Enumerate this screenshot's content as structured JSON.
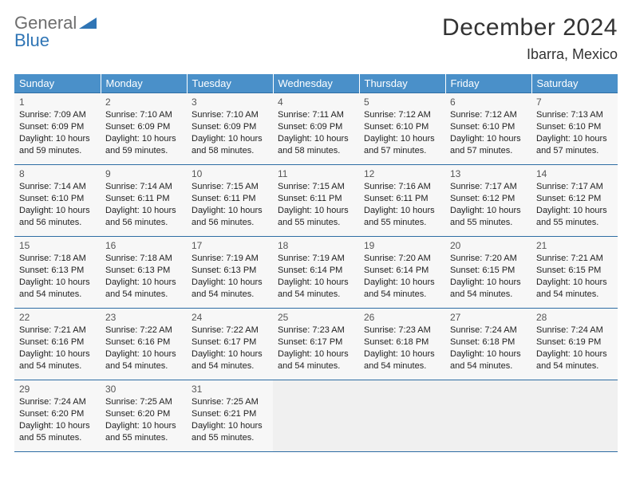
{
  "brand": {
    "part1": "General",
    "part2": "Blue"
  },
  "title": "December 2024",
  "location": "Ibarra, Mexico",
  "weekdays": [
    "Sunday",
    "Monday",
    "Tuesday",
    "Wednesday",
    "Thursday",
    "Friday",
    "Saturday"
  ],
  "colors": {
    "header_bg": "#4a90c9",
    "header_text": "#ffffff",
    "border": "#2e6da4",
    "cell_bg": "#f7f7f7",
    "empty_bg": "#f0f0f0",
    "logo_gray": "#6e6e6e",
    "logo_blue": "#2f75b5",
    "triangle": "#2f75b5"
  },
  "days": [
    {
      "n": "1",
      "sr": "Sunrise: 7:09 AM",
      "ss": "Sunset: 6:09 PM",
      "d1": "Daylight: 10 hours",
      "d2": "and 59 minutes."
    },
    {
      "n": "2",
      "sr": "Sunrise: 7:10 AM",
      "ss": "Sunset: 6:09 PM",
      "d1": "Daylight: 10 hours",
      "d2": "and 59 minutes."
    },
    {
      "n": "3",
      "sr": "Sunrise: 7:10 AM",
      "ss": "Sunset: 6:09 PM",
      "d1": "Daylight: 10 hours",
      "d2": "and 58 minutes."
    },
    {
      "n": "4",
      "sr": "Sunrise: 7:11 AM",
      "ss": "Sunset: 6:09 PM",
      "d1": "Daylight: 10 hours",
      "d2": "and 58 minutes."
    },
    {
      "n": "5",
      "sr": "Sunrise: 7:12 AM",
      "ss": "Sunset: 6:10 PM",
      "d1": "Daylight: 10 hours",
      "d2": "and 57 minutes."
    },
    {
      "n": "6",
      "sr": "Sunrise: 7:12 AM",
      "ss": "Sunset: 6:10 PM",
      "d1": "Daylight: 10 hours",
      "d2": "and 57 minutes."
    },
    {
      "n": "7",
      "sr": "Sunrise: 7:13 AM",
      "ss": "Sunset: 6:10 PM",
      "d1": "Daylight: 10 hours",
      "d2": "and 57 minutes."
    },
    {
      "n": "8",
      "sr": "Sunrise: 7:14 AM",
      "ss": "Sunset: 6:10 PM",
      "d1": "Daylight: 10 hours",
      "d2": "and 56 minutes."
    },
    {
      "n": "9",
      "sr": "Sunrise: 7:14 AM",
      "ss": "Sunset: 6:11 PM",
      "d1": "Daylight: 10 hours",
      "d2": "and 56 minutes."
    },
    {
      "n": "10",
      "sr": "Sunrise: 7:15 AM",
      "ss": "Sunset: 6:11 PM",
      "d1": "Daylight: 10 hours",
      "d2": "and 56 minutes."
    },
    {
      "n": "11",
      "sr": "Sunrise: 7:15 AM",
      "ss": "Sunset: 6:11 PM",
      "d1": "Daylight: 10 hours",
      "d2": "and 55 minutes."
    },
    {
      "n": "12",
      "sr": "Sunrise: 7:16 AM",
      "ss": "Sunset: 6:11 PM",
      "d1": "Daylight: 10 hours",
      "d2": "and 55 minutes."
    },
    {
      "n": "13",
      "sr": "Sunrise: 7:17 AM",
      "ss": "Sunset: 6:12 PM",
      "d1": "Daylight: 10 hours",
      "d2": "and 55 minutes."
    },
    {
      "n": "14",
      "sr": "Sunrise: 7:17 AM",
      "ss": "Sunset: 6:12 PM",
      "d1": "Daylight: 10 hours",
      "d2": "and 55 minutes."
    },
    {
      "n": "15",
      "sr": "Sunrise: 7:18 AM",
      "ss": "Sunset: 6:13 PM",
      "d1": "Daylight: 10 hours",
      "d2": "and 54 minutes."
    },
    {
      "n": "16",
      "sr": "Sunrise: 7:18 AM",
      "ss": "Sunset: 6:13 PM",
      "d1": "Daylight: 10 hours",
      "d2": "and 54 minutes."
    },
    {
      "n": "17",
      "sr": "Sunrise: 7:19 AM",
      "ss": "Sunset: 6:13 PM",
      "d1": "Daylight: 10 hours",
      "d2": "and 54 minutes."
    },
    {
      "n": "18",
      "sr": "Sunrise: 7:19 AM",
      "ss": "Sunset: 6:14 PM",
      "d1": "Daylight: 10 hours",
      "d2": "and 54 minutes."
    },
    {
      "n": "19",
      "sr": "Sunrise: 7:20 AM",
      "ss": "Sunset: 6:14 PM",
      "d1": "Daylight: 10 hours",
      "d2": "and 54 minutes."
    },
    {
      "n": "20",
      "sr": "Sunrise: 7:20 AM",
      "ss": "Sunset: 6:15 PM",
      "d1": "Daylight: 10 hours",
      "d2": "and 54 minutes."
    },
    {
      "n": "21",
      "sr": "Sunrise: 7:21 AM",
      "ss": "Sunset: 6:15 PM",
      "d1": "Daylight: 10 hours",
      "d2": "and 54 minutes."
    },
    {
      "n": "22",
      "sr": "Sunrise: 7:21 AM",
      "ss": "Sunset: 6:16 PM",
      "d1": "Daylight: 10 hours",
      "d2": "and 54 minutes."
    },
    {
      "n": "23",
      "sr": "Sunrise: 7:22 AM",
      "ss": "Sunset: 6:16 PM",
      "d1": "Daylight: 10 hours",
      "d2": "and 54 minutes."
    },
    {
      "n": "24",
      "sr": "Sunrise: 7:22 AM",
      "ss": "Sunset: 6:17 PM",
      "d1": "Daylight: 10 hours",
      "d2": "and 54 minutes."
    },
    {
      "n": "25",
      "sr": "Sunrise: 7:23 AM",
      "ss": "Sunset: 6:17 PM",
      "d1": "Daylight: 10 hours",
      "d2": "and 54 minutes."
    },
    {
      "n": "26",
      "sr": "Sunrise: 7:23 AM",
      "ss": "Sunset: 6:18 PM",
      "d1": "Daylight: 10 hours",
      "d2": "and 54 minutes."
    },
    {
      "n": "27",
      "sr": "Sunrise: 7:24 AM",
      "ss": "Sunset: 6:18 PM",
      "d1": "Daylight: 10 hours",
      "d2": "and 54 minutes."
    },
    {
      "n": "28",
      "sr": "Sunrise: 7:24 AM",
      "ss": "Sunset: 6:19 PM",
      "d1": "Daylight: 10 hours",
      "d2": "and 54 minutes."
    },
    {
      "n": "29",
      "sr": "Sunrise: 7:24 AM",
      "ss": "Sunset: 6:20 PM",
      "d1": "Daylight: 10 hours",
      "d2": "and 55 minutes."
    },
    {
      "n": "30",
      "sr": "Sunrise: 7:25 AM",
      "ss": "Sunset: 6:20 PM",
      "d1": "Daylight: 10 hours",
      "d2": "and 55 minutes."
    },
    {
      "n": "31",
      "sr": "Sunrise: 7:25 AM",
      "ss": "Sunset: 6:21 PM",
      "d1": "Daylight: 10 hours",
      "d2": "and 55 minutes."
    }
  ]
}
